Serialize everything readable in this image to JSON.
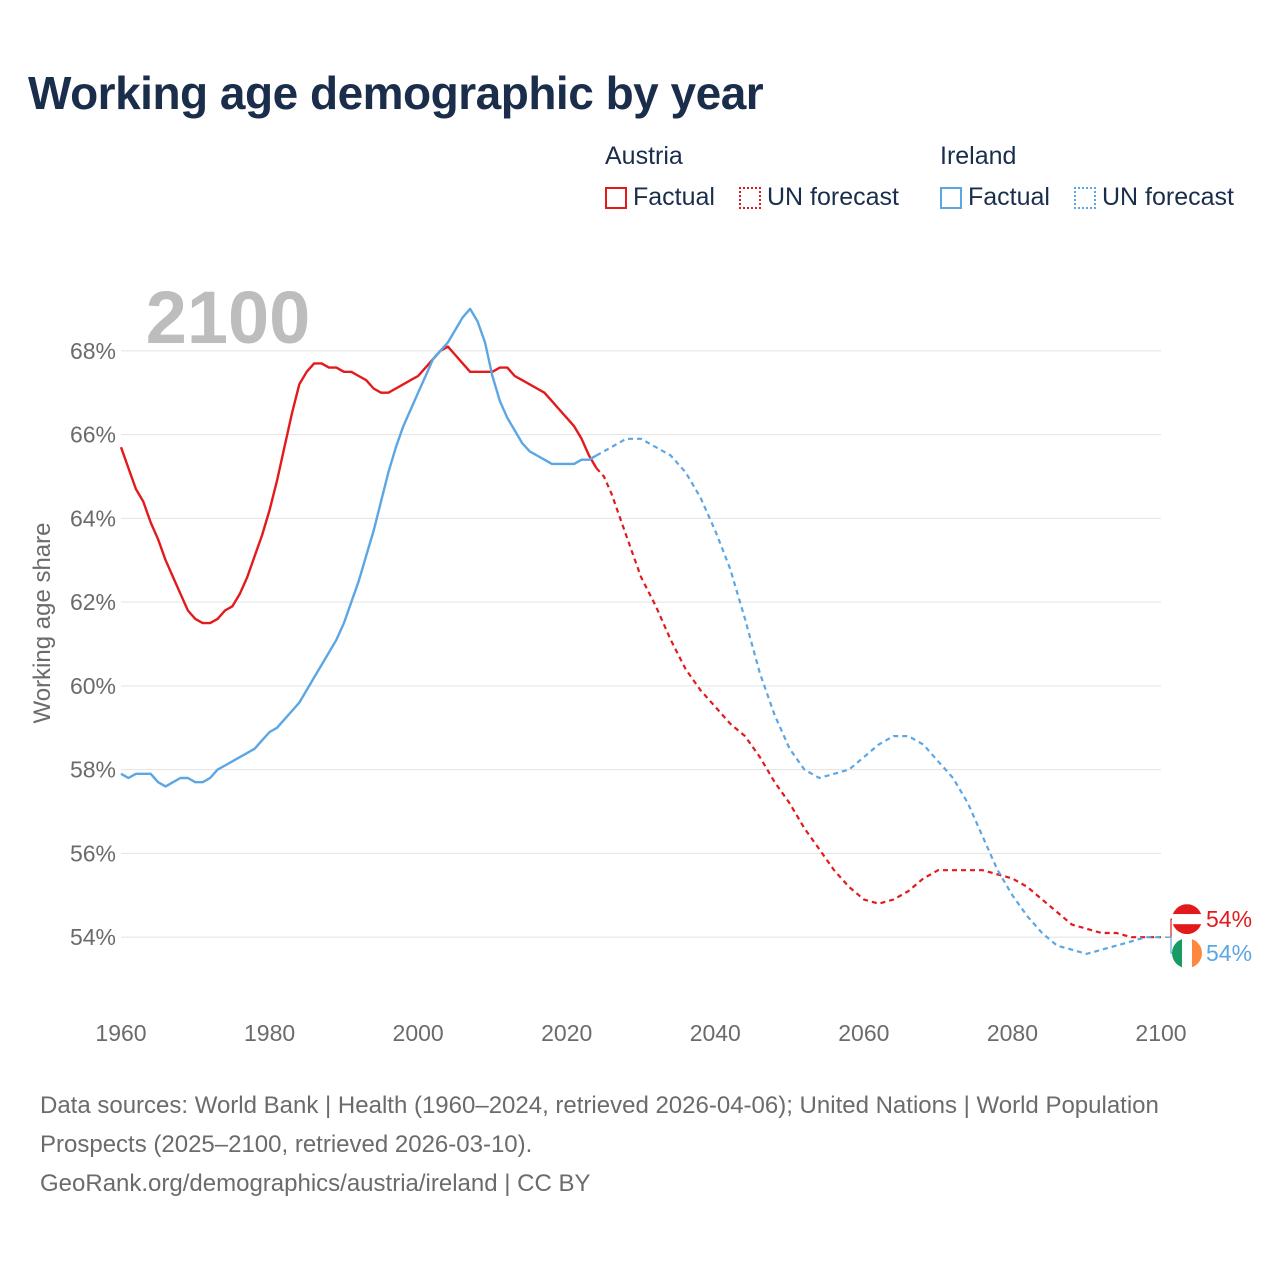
{
  "title": "Working age demographic by year",
  "legend": {
    "groups": [
      {
        "name": "Austria",
        "color": "#e31a1c",
        "factual_label": "Factual",
        "forecast_label": "UN forecast"
      },
      {
        "name": "Ireland",
        "color": "#5ca6e4",
        "factual_label": "Factual",
        "forecast_label": "UN forecast"
      }
    ]
  },
  "chart_data": {
    "type": "line",
    "title": "Working age demographic by year",
    "year_label": "2100",
    "xlabel": "",
    "ylabel": "Working age share",
    "xlim": [
      1960,
      2100
    ],
    "ylim": [
      52.5,
      69.5
    ],
    "x_ticks": [
      1960,
      1980,
      2000,
      2020,
      2040,
      2060,
      2080,
      2100
    ],
    "y_ticks": [
      {
        "value": 54,
        "label": "54%"
      },
      {
        "value": 56,
        "label": "56%"
      },
      {
        "value": 58,
        "label": "58%"
      },
      {
        "value": 60,
        "label": "60%"
      },
      {
        "value": 62,
        "label": "62%"
      },
      {
        "value": 64,
        "label": "64%"
      },
      {
        "value": 66,
        "label": "66%"
      },
      {
        "value": 68,
        "label": "68%"
      }
    ],
    "grid": true,
    "series": [
      {
        "name": "Austria",
        "color": "#e31a1c",
        "end_label": "54%",
        "flag": "austria-flag",
        "factual": [
          [
            1960,
            65.7
          ],
          [
            1962,
            64.7
          ],
          [
            1963,
            64.4
          ],
          [
            1964,
            63.9
          ],
          [
            1965,
            63.5
          ],
          [
            1966,
            63.0
          ],
          [
            1967,
            62.6
          ],
          [
            1968,
            62.2
          ],
          [
            1969,
            61.8
          ],
          [
            1970,
            61.6
          ],
          [
            1971,
            61.5
          ],
          [
            1972,
            61.5
          ],
          [
            1973,
            61.6
          ],
          [
            1974,
            61.8
          ],
          [
            1975,
            61.9
          ],
          [
            1976,
            62.2
          ],
          [
            1977,
            62.6
          ],
          [
            1978,
            63.1
          ],
          [
            1979,
            63.6
          ],
          [
            1980,
            64.2
          ],
          [
            1981,
            64.9
          ],
          [
            1982,
            65.7
          ],
          [
            1983,
            66.5
          ],
          [
            1984,
            67.2
          ],
          [
            1985,
            67.5
          ],
          [
            1986,
            67.7
          ],
          [
            1987,
            67.7
          ],
          [
            1988,
            67.6
          ],
          [
            1989,
            67.6
          ],
          [
            1990,
            67.5
          ],
          [
            1991,
            67.5
          ],
          [
            1992,
            67.4
          ],
          [
            1993,
            67.3
          ],
          [
            1994,
            67.1
          ],
          [
            1995,
            67.0
          ],
          [
            1996,
            67.0
          ],
          [
            1997,
            67.1
          ],
          [
            1998,
            67.2
          ],
          [
            1999,
            67.3
          ],
          [
            2000,
            67.4
          ],
          [
            2001,
            67.6
          ],
          [
            2002,
            67.8
          ],
          [
            2003,
            68.0
          ],
          [
            2004,
            68.1
          ],
          [
            2005,
            67.9
          ],
          [
            2006,
            67.7
          ],
          [
            2007,
            67.5
          ],
          [
            2008,
            67.5
          ],
          [
            2009,
            67.5
          ],
          [
            2010,
            67.5
          ],
          [
            2011,
            67.6
          ],
          [
            2012,
            67.6
          ],
          [
            2013,
            67.4
          ],
          [
            2014,
            67.3
          ],
          [
            2015,
            67.2
          ],
          [
            2016,
            67.1
          ],
          [
            2017,
            67.0
          ],
          [
            2018,
            66.8
          ],
          [
            2019,
            66.6
          ],
          [
            2020,
            66.4
          ],
          [
            2021,
            66.2
          ],
          [
            2022,
            65.9
          ],
          [
            2023,
            65.5
          ],
          [
            2024,
            65.2
          ]
        ],
        "forecast": [
          [
            2024,
            65.2
          ],
          [
            2025,
            65.0
          ],
          [
            2026,
            64.6
          ],
          [
            2028,
            63.6
          ],
          [
            2030,
            62.6
          ],
          [
            2032,
            61.9
          ],
          [
            2034,
            61.1
          ],
          [
            2036,
            60.4
          ],
          [
            2038,
            59.9
          ],
          [
            2040,
            59.5
          ],
          [
            2042,
            59.1
          ],
          [
            2044,
            58.8
          ],
          [
            2046,
            58.3
          ],
          [
            2048,
            57.7
          ],
          [
            2050,
            57.2
          ],
          [
            2052,
            56.6
          ],
          [
            2054,
            56.1
          ],
          [
            2056,
            55.6
          ],
          [
            2058,
            55.2
          ],
          [
            2060,
            54.9
          ],
          [
            2062,
            54.8
          ],
          [
            2064,
            54.9
          ],
          [
            2066,
            55.1
          ],
          [
            2068,
            55.4
          ],
          [
            2070,
            55.6
          ],
          [
            2072,
            55.6
          ],
          [
            2074,
            55.6
          ],
          [
            2076,
            55.6
          ],
          [
            2078,
            55.5
          ],
          [
            2080,
            55.4
          ],
          [
            2082,
            55.2
          ],
          [
            2084,
            54.9
          ],
          [
            2086,
            54.6
          ],
          [
            2088,
            54.3
          ],
          [
            2090,
            54.2
          ],
          [
            2092,
            54.1
          ],
          [
            2094,
            54.1
          ],
          [
            2096,
            54.0
          ],
          [
            2098,
            54.0
          ],
          [
            2100,
            54.0
          ]
        ]
      },
      {
        "name": "Ireland",
        "color": "#5ca6e4",
        "end_label": "54%",
        "flag": "ireland-flag",
        "factual": [
          [
            1960,
            57.9
          ],
          [
            1961,
            57.8
          ],
          [
            1962,
            57.9
          ],
          [
            1963,
            57.9
          ],
          [
            1964,
            57.9
          ],
          [
            1965,
            57.7
          ],
          [
            1966,
            57.6
          ],
          [
            1967,
            57.7
          ],
          [
            1968,
            57.8
          ],
          [
            1969,
            57.8
          ],
          [
            1970,
            57.7
          ],
          [
            1971,
            57.7
          ],
          [
            1972,
            57.8
          ],
          [
            1973,
            58.0
          ],
          [
            1974,
            58.1
          ],
          [
            1975,
            58.2
          ],
          [
            1976,
            58.3
          ],
          [
            1977,
            58.4
          ],
          [
            1978,
            58.5
          ],
          [
            1979,
            58.7
          ],
          [
            1980,
            58.9
          ],
          [
            1981,
            59.0
          ],
          [
            1982,
            59.2
          ],
          [
            1983,
            59.4
          ],
          [
            1984,
            59.6
          ],
          [
            1985,
            59.9
          ],
          [
            1986,
            60.2
          ],
          [
            1987,
            60.5
          ],
          [
            1988,
            60.8
          ],
          [
            1989,
            61.1
          ],
          [
            1990,
            61.5
          ],
          [
            1991,
            62.0
          ],
          [
            1992,
            62.5
          ],
          [
            1993,
            63.1
          ],
          [
            1994,
            63.7
          ],
          [
            1995,
            64.4
          ],
          [
            1996,
            65.1
          ],
          [
            1997,
            65.7
          ],
          [
            1998,
            66.2
          ],
          [
            1999,
            66.6
          ],
          [
            2000,
            67.0
          ],
          [
            2001,
            67.4
          ],
          [
            2002,
            67.8
          ],
          [
            2003,
            68.0
          ],
          [
            2004,
            68.2
          ],
          [
            2005,
            68.5
          ],
          [
            2006,
            68.8
          ],
          [
            2007,
            69.0
          ],
          [
            2008,
            68.7
          ],
          [
            2009,
            68.2
          ],
          [
            2010,
            67.4
          ],
          [
            2011,
            66.8
          ],
          [
            2012,
            66.4
          ],
          [
            2013,
            66.1
          ],
          [
            2014,
            65.8
          ],
          [
            2015,
            65.6
          ],
          [
            2016,
            65.5
          ],
          [
            2017,
            65.4
          ],
          [
            2018,
            65.3
          ],
          [
            2019,
            65.3
          ],
          [
            2020,
            65.3
          ],
          [
            2021,
            65.3
          ],
          [
            2022,
            65.4
          ],
          [
            2023,
            65.4
          ],
          [
            2024,
            65.5
          ]
        ],
        "forecast": [
          [
            2024,
            65.5
          ],
          [
            2025,
            65.6
          ],
          [
            2026,
            65.7
          ],
          [
            2027,
            65.8
          ],
          [
            2028,
            65.9
          ],
          [
            2030,
            65.9
          ],
          [
            2032,
            65.7
          ],
          [
            2034,
            65.5
          ],
          [
            2036,
            65.1
          ],
          [
            2038,
            64.5
          ],
          [
            2040,
            63.7
          ],
          [
            2042,
            62.8
          ],
          [
            2044,
            61.6
          ],
          [
            2046,
            60.3
          ],
          [
            2048,
            59.3
          ],
          [
            2050,
            58.5
          ],
          [
            2052,
            58.0
          ],
          [
            2054,
            57.8
          ],
          [
            2056,
            57.9
          ],
          [
            2058,
            58.0
          ],
          [
            2060,
            58.3
          ],
          [
            2062,
            58.6
          ],
          [
            2064,
            58.8
          ],
          [
            2066,
            58.8
          ],
          [
            2068,
            58.6
          ],
          [
            2070,
            58.2
          ],
          [
            2072,
            57.8
          ],
          [
            2074,
            57.2
          ],
          [
            2076,
            56.4
          ],
          [
            2078,
            55.6
          ],
          [
            2080,
            55.0
          ],
          [
            2082,
            54.5
          ],
          [
            2084,
            54.1
          ],
          [
            2086,
            53.8
          ],
          [
            2088,
            53.7
          ],
          [
            2090,
            53.6
          ],
          [
            2092,
            53.7
          ],
          [
            2094,
            53.8
          ],
          [
            2096,
            53.9
          ],
          [
            2098,
            54.0
          ],
          [
            2100,
            54.0
          ]
        ]
      }
    ]
  },
  "footer": {
    "sources": "Data sources: World Bank | Health (1960–2024, retrieved 2026-04-06); United Nations | World Population Prospects (2025–2100, retrieved 2026-03-10).",
    "attribution": "GeoRank.org/demographics/austria/ireland | CC BY"
  }
}
